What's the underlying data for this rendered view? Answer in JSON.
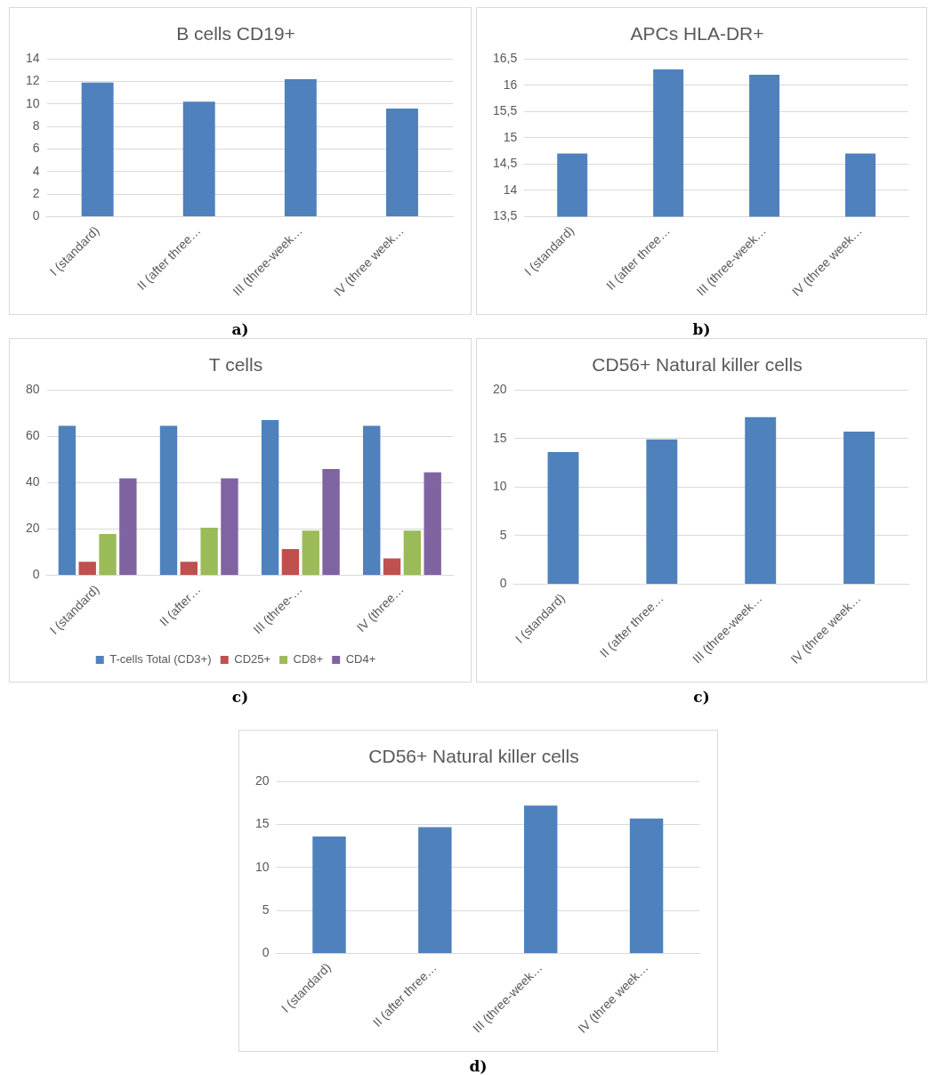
{
  "chart_data": [
    {
      "type": "bar",
      "title": "B cells CD19+",
      "categories": [
        "I (standard)",
        "II (after three…",
        "III (three-week…",
        "IV (three week…"
      ],
      "values": [
        11.9,
        10.2,
        12.2,
        9.6
      ],
      "color": "#4f81bd",
      "ylim": [
        0,
        14
      ],
      "yticks": [
        0,
        2,
        4,
        6,
        8,
        10,
        12,
        14
      ],
      "grid": "y",
      "legend": false,
      "annotations": [
        "a)"
      ]
    },
    {
      "type": "bar",
      "title": "APCs HLA-DR+",
      "categories": [
        "I (standard)",
        "II (after three…",
        "III (three-week…",
        "IV (three week…"
      ],
      "values": [
        14.7,
        16.3,
        16.2,
        14.7
      ],
      "color": "#4f81bd",
      "ylim": [
        13.5,
        16.5
      ],
      "yticks": [
        {
          "value": 13.5,
          "label": "13,5"
        },
        14,
        {
          "value": 14.5,
          "label": "14,5"
        },
        15,
        {
          "value": 15.5,
          "label": "15,5"
        },
        16,
        {
          "value": 16.5,
          "label": "16,5"
        }
      ],
      "grid": "y",
      "legend": false,
      "annotations": [
        "b)"
      ]
    },
    {
      "type": "bar",
      "title": "T cells",
      "categories": [
        "I (standard)",
        "II (after…",
        "III (three-…",
        "IV (three…"
      ],
      "series": [
        {
          "name": "T-cells Total (CD3+)",
          "color": "#4f81bd",
          "values": [
            64.5,
            64.5,
            67,
            64.5
          ]
        },
        {
          "name": "CD25+",
          "color": "#c0504d",
          "values": [
            5.9,
            5.9,
            11.3,
            7.3
          ]
        },
        {
          "name": "CD8+",
          "color": "#9bbb59",
          "values": [
            17.9,
            20.5,
            19.3,
            19.3
          ]
        },
        {
          "name": "CD4+",
          "color": "#8064a2",
          "values": [
            41.9,
            41.9,
            45.9,
            44.5
          ]
        }
      ],
      "ylim": [
        0,
        80
      ],
      "yticks": [
        0,
        20,
        40,
        60,
        80
      ],
      "grid": "y",
      "legend": "bottom",
      "annotations": [
        "c)"
      ]
    },
    {
      "type": "bar",
      "title": "CD56+ Natural killer cells",
      "categories": [
        "I (standard)",
        "II (after three…",
        "III (three-week…",
        "IV (three week…"
      ],
      "values": [
        13.6,
        14.9,
        17.2,
        15.7
      ],
      "color": "#4f81bd",
      "ylim": [
        0,
        20
      ],
      "yticks": [
        0,
        5,
        10,
        15,
        20
      ],
      "grid": "y",
      "legend": false,
      "annotations": [
        "c)"
      ]
    },
    {
      "type": "bar",
      "title": "CD56+ Natural killer cells",
      "categories": [
        "I (standard)",
        "II (after three…",
        "III (three-week…",
        "IV (three week…"
      ],
      "values": [
        13.6,
        14.7,
        17.2,
        15.7
      ],
      "color": "#4f81bd",
      "ylim": [
        0,
        20
      ],
      "yticks": [
        0,
        5,
        10,
        15,
        20
      ],
      "grid": "y",
      "legend": false,
      "annotations": [
        "d)"
      ]
    }
  ]
}
